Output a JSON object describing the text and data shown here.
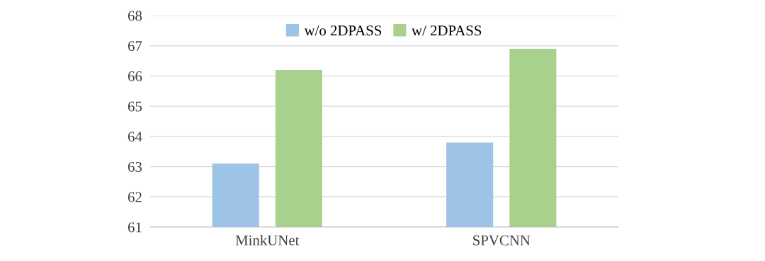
{
  "chart_data": {
    "type": "bar",
    "categories": [
      "MinkUNet",
      "SPVCNN"
    ],
    "series": [
      {
        "name": "w/o 2DPASS",
        "color": "#9dc3e6",
        "values": [
          63.1,
          63.8
        ]
      },
      {
        "name": "w/ 2DPASS",
        "color": "#a9d18e",
        "values": [
          66.2,
          66.9
        ]
      }
    ],
    "ylim": [
      61,
      68
    ],
    "yticks": [
      61,
      62,
      63,
      64,
      65,
      66,
      67,
      68
    ],
    "grid": "y",
    "legend": "top"
  }
}
